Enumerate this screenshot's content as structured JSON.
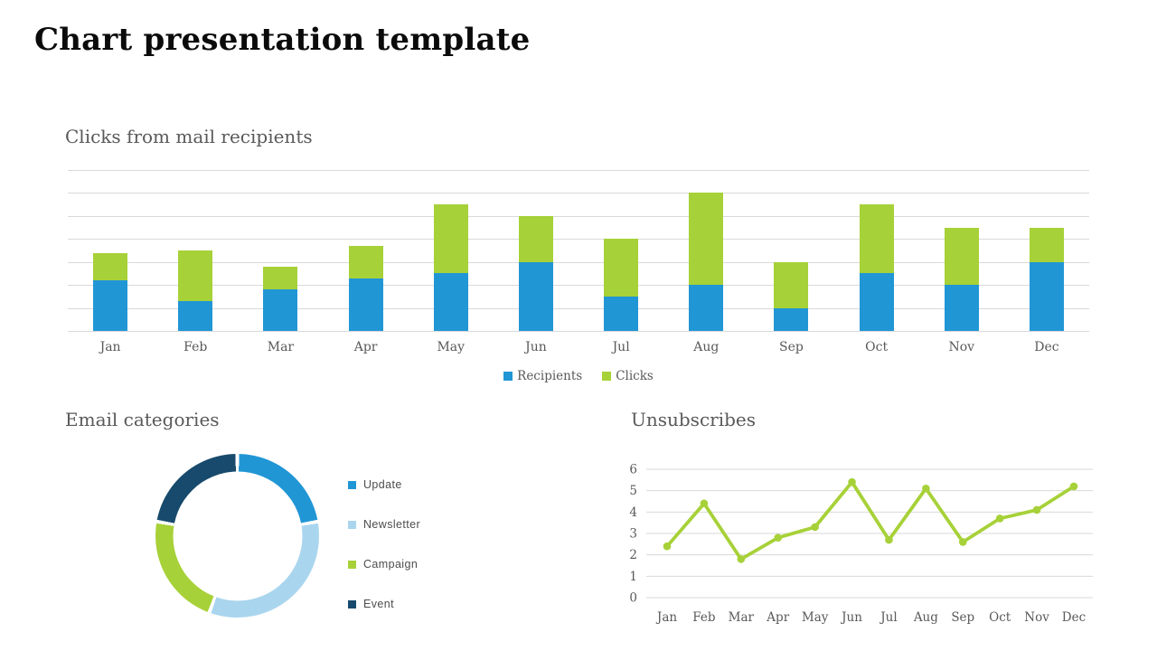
{
  "page": {
    "title": "Chart presentation template"
  },
  "colors": {
    "blue": "#2196d5",
    "light_blue": "#a9d5ee",
    "green": "#a7d138",
    "navy": "#174a6c",
    "grid": "#d9d9d9",
    "axis_text": "#595959",
    "section_title": "#595959",
    "donut_legend_text": "#4d4d4d",
    "background": "#ffffff"
  },
  "chart_data": [
    {
      "type": "bar",
      "stacked": true,
      "title": "Clicks from mail recipients",
      "categories": [
        "Jan",
        "Feb",
        "Mar",
        "Apr",
        "May",
        "Jun",
        "Jul",
        "Aug",
        "Sep",
        "Oct",
        "Nov",
        "Dec"
      ],
      "series": [
        {
          "name": "Recipients",
          "color_key": "blue",
          "values": [
            22,
            13,
            18,
            23,
            25,
            30,
            15,
            20,
            10,
            25,
            20,
            30
          ]
        },
        {
          "name": "Clicks",
          "color_key": "green",
          "values": [
            12,
            22,
            10,
            14,
            30,
            20,
            25,
            40,
            20,
            30,
            25,
            15
          ]
        }
      ],
      "xlabel": "",
      "ylabel": "",
      "ylim": [
        0,
        70
      ],
      "grid_step": 10,
      "grid": true,
      "y_axis_labels_shown": false,
      "legend_position": "bottom"
    },
    {
      "type": "pie",
      "donut": true,
      "title": "Email categories",
      "segments": [
        {
          "label": "Update",
          "value": 2,
          "percent": 22.2,
          "color_key": "blue"
        },
        {
          "label": "Newsletter",
          "value": 3,
          "percent": 33.3,
          "color_key": "light_blue"
        },
        {
          "label": "Campaign",
          "value": 2,
          "percent": 22.2,
          "color_key": "green"
        },
        {
          "label": "Event",
          "value": 2,
          "percent": 22.2,
          "color_key": "navy"
        }
      ],
      "start_angle_deg": 0,
      "legend_position": "right"
    },
    {
      "type": "line",
      "title": "Unsubscribes",
      "categories": [
        "Jan",
        "Feb",
        "Mar",
        "Apr",
        "May",
        "Jun",
        "Jul",
        "Aug",
        "Sep",
        "Oct",
        "Nov",
        "Dec"
      ],
      "values": [
        2.4,
        4.4,
        1.8,
        2.8,
        3.3,
        5.4,
        2.7,
        5.1,
        2.6,
        3.7,
        4.1,
        5.2
      ],
      "xlabel": "",
      "ylabel": "",
      "ylim": [
        0,
        6
      ],
      "ytick_step": 1,
      "yticks": [
        0,
        1,
        2,
        3,
        4,
        5,
        6
      ],
      "grid": true,
      "markers": true,
      "color_key": "green",
      "legend_position": "none"
    }
  ]
}
